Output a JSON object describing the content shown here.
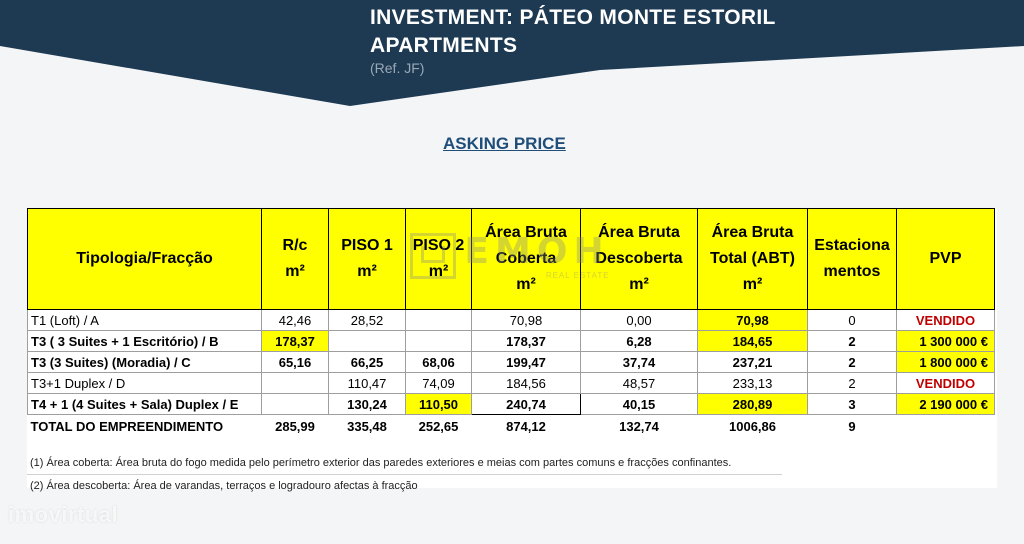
{
  "colors": {
    "banner": "#1e3a52",
    "highlight": "#ffff00",
    "sold": "#c00000",
    "asking": "#1f4e79"
  },
  "banner": {
    "title_line1": "INVESTMENT: PÁTEO MONTE ESTORIL",
    "title_line2": "APARTMENTS",
    "ref": "(Ref. JF)"
  },
  "asking_price": "ASKING PRICE",
  "table": {
    "headers": {
      "tipologia": "Tipologia/Fracção",
      "rc_line1": "R/c",
      "rc_line2": "m²",
      "p1_line1": "PISO 1",
      "p1_line2": "m²",
      "p2_line1": "PISO 2",
      "p2_line2": "m²",
      "abc_line1": "Área Bruta",
      "abc_line2": "Coberta",
      "abc_line3": "m²",
      "abd_line1": "Área Bruta",
      "abd_line2": "Descoberta",
      "abd_line3": "m²",
      "abt_line1": "Área Bruta",
      "abt_line2": "Total  (ABT)",
      "abt_line3": "m²",
      "est_line1": "Estaciona",
      "est_line2": "mentos",
      "pvp": "PVP"
    },
    "rows": [
      {
        "tipologia": "T1 (Loft) / A",
        "rc": "42,46",
        "p1": "28,52",
        "p2": "",
        "abc": "70,98",
        "abd": "0,00",
        "abt": "70,98",
        "est": "0",
        "pvp": "VENDIDO"
      },
      {
        "tipologia": "T3 ( 3 Suites + 1 Escritório) / B",
        "rc": "178,37",
        "p1": "",
        "p2": "",
        "abc": "178,37",
        "abd": "6,28",
        "abt": "184,65",
        "est": "2",
        "pvp": "1 300 000 €"
      },
      {
        "tipologia": "T3  (3 Suites) (Moradia) /  C",
        "rc": "65,16",
        "p1": "66,25",
        "p2": "68,06",
        "abc": "199,47",
        "abd": "37,74",
        "abt": "237,21",
        "est": "2",
        "pvp": "1 800 000 €"
      },
      {
        "tipologia": "T3+1  Duplex / D",
        "rc": "",
        "p1": "110,47",
        "p2": "74,09",
        "abc": "184,56",
        "abd": "48,57",
        "abt": "233,13",
        "est": "2",
        "pvp": "VENDIDO"
      },
      {
        "tipologia": "T4 + 1  (4 Suites +  Sala) Duplex / E",
        "rc": "",
        "p1": "130,24",
        "p2": "110,50",
        "abc": "240,74",
        "abd": "40,15",
        "abt": "280,89",
        "est": "3",
        "pvp": "2 190 000 €"
      }
    ],
    "total": {
      "label": "TOTAL DO EMPREENDIMENTO",
      "rc": "285,99",
      "p1": "335,48",
      "p2": "252,65",
      "abc": "874,12",
      "abd": "132,74",
      "abt": "1006,86",
      "est": "9"
    }
  },
  "notes": {
    "n1": "(1) Área coberta: Área bruta do fogo medida pelo perímetro exterior das paredes exteriores e meias com partes comuns e fracções confinantes.",
    "n2": "(2) Área descoberta: Área de varandas, terraços e logradouro afectas à fracção"
  },
  "watermark": {
    "text": "EMOH",
    "sub": "REAL ESTATE",
    "icon": "house-logo-icon"
  },
  "imovirtual": "imovirtual"
}
